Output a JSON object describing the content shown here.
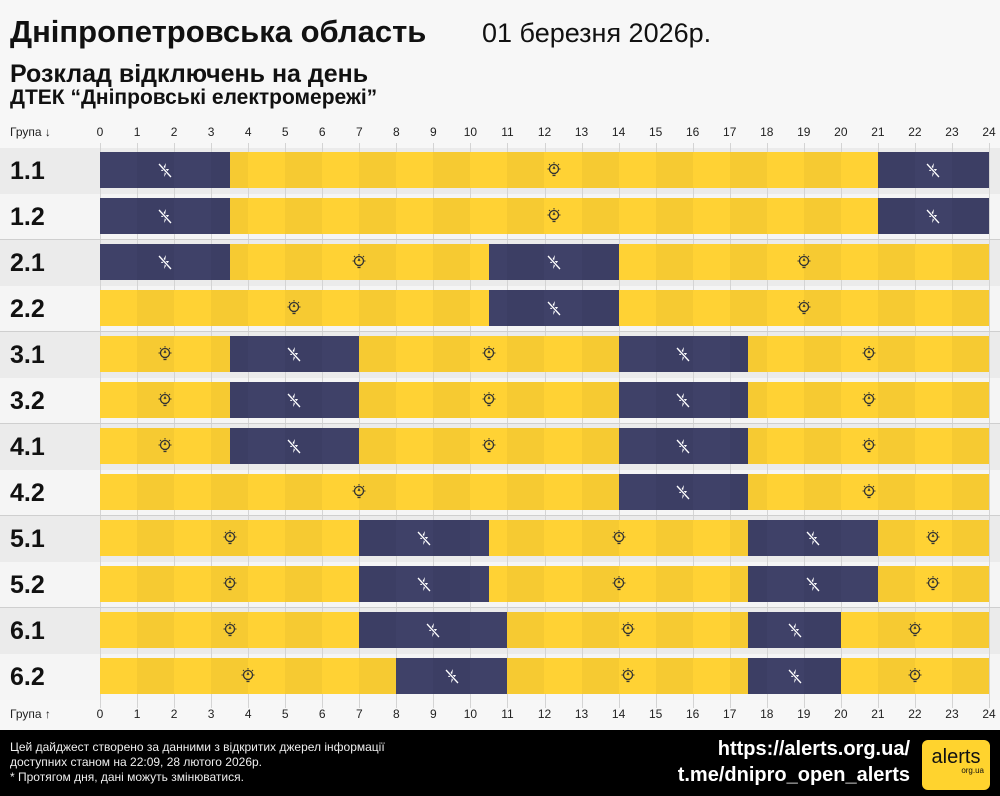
{
  "header": {
    "title": "Дніпропетровська область",
    "date": "01 березня 2026р.",
    "subtitle": "Розклад відключень на день",
    "provider": "ДТЕК “Дніпровські електромережі”"
  },
  "axis": {
    "top_label": "Група ↓",
    "bottom_label": "Група ↑"
  },
  "colors": {
    "off": "#3f4168",
    "on": "#ffd234",
    "text": "#111111"
  },
  "chart_data": {
    "type": "timeline",
    "xlim": [
      0,
      24
    ],
    "ticks": [
      0,
      1,
      2,
      3,
      4,
      5,
      6,
      7,
      8,
      9,
      10,
      11,
      12,
      13,
      14,
      15,
      16,
      17,
      18,
      19,
      20,
      21,
      22,
      23,
      24
    ],
    "legend": {
      "on_icon": "lightbulb-icon",
      "off_icon": "no-power-bolt-icon"
    },
    "groups": [
      {
        "name": "1.1",
        "off": [
          [
            0,
            3.5
          ],
          [
            21,
            24
          ]
        ]
      },
      {
        "name": "1.2",
        "off": [
          [
            0,
            3.5
          ],
          [
            21,
            24
          ]
        ]
      },
      {
        "name": "2.1",
        "off": [
          [
            0,
            3.5
          ],
          [
            10.5,
            14
          ]
        ]
      },
      {
        "name": "2.2",
        "off": [
          [
            10.5,
            14
          ]
        ]
      },
      {
        "name": "3.1",
        "off": [
          [
            3.5,
            7
          ],
          [
            14,
            17.5
          ]
        ]
      },
      {
        "name": "3.2",
        "off": [
          [
            3.5,
            7
          ],
          [
            14,
            17.5
          ]
        ]
      },
      {
        "name": "4.1",
        "off": [
          [
            3.5,
            7
          ],
          [
            14,
            17.5
          ]
        ]
      },
      {
        "name": "4.2",
        "off": [
          [
            14,
            17.5
          ]
        ]
      },
      {
        "name": "5.1",
        "off": [
          [
            7,
            10.5
          ],
          [
            17.5,
            21
          ]
        ]
      },
      {
        "name": "5.2",
        "off": [
          [
            7,
            10.5
          ],
          [
            17.5,
            21
          ]
        ]
      },
      {
        "name": "6.1",
        "off": [
          [
            7,
            11
          ],
          [
            17.5,
            20
          ]
        ]
      },
      {
        "name": "6.2",
        "off": [
          [
            8,
            11
          ],
          [
            17.5,
            20
          ]
        ]
      }
    ]
  },
  "footer": {
    "note1": "Цей дайджест створено за данними з відкритих джерел інформації",
    "note2": "доступних станом на 22:09, 28 лютого 2026р.",
    "note3": "* Протягом дня, дані можуть змінюватися.",
    "link1": "https://alerts.org.ua/",
    "link2": "t.me/dnipro_open_alerts",
    "logo_text": "alerts",
    "logo_sub": "org.ua"
  }
}
